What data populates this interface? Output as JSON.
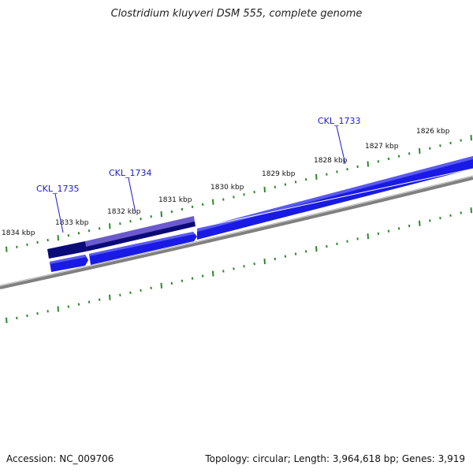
{
  "title": "Clostridium kluyveri DSM 555, complete genome",
  "footer": {
    "accession": "Accession: NC_009706",
    "summary": "Topology: circular; Length: 3,964,618 bp; Genes: 3,919"
  },
  "scale_labels": [
    "1826 kbp",
    "1827 kbp",
    "1828 kbp",
    "1829 kbp",
    "1830 kbp",
    "1831 kbp",
    "1832 kbp",
    "1833 kbp",
    "1834 kbp"
  ],
  "gene_labels": [
    "CKL_1733",
    "CKL_1734",
    "CKL_1735"
  ],
  "colors": {
    "tick": "#2a8a2a",
    "backbone": "#808080",
    "gene_blue": "#1a1ae6",
    "gene_dark": "#0a0a78",
    "gene_violet": "#6a5acd",
    "label_blue": "#1a1acc"
  }
}
